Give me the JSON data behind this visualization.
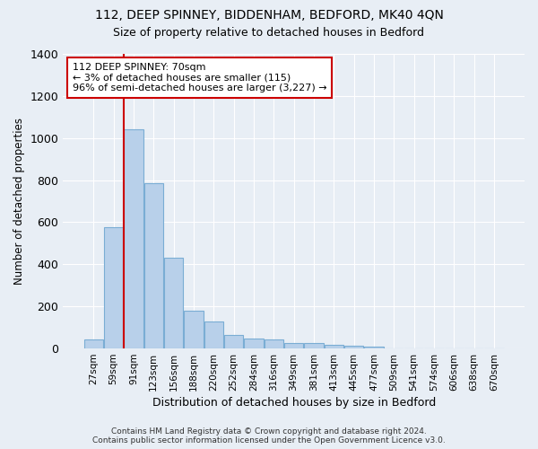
{
  "title1": "112, DEEP SPINNEY, BIDDENHAM, BEDFORD, MK40 4QN",
  "title2": "Size of property relative to detached houses in Bedford",
  "xlabel": "Distribution of detached houses by size in Bedford",
  "ylabel": "Number of detached properties",
  "footnote": "Contains HM Land Registry data © Crown copyright and database right 2024.\nContains public sector information licensed under the Open Government Licence v3.0.",
  "bar_labels": [
    "27sqm",
    "59sqm",
    "91sqm",
    "123sqm",
    "156sqm",
    "188sqm",
    "220sqm",
    "252sqm",
    "284sqm",
    "316sqm",
    "349sqm",
    "381sqm",
    "413sqm",
    "445sqm",
    "477sqm",
    "509sqm",
    "541sqm",
    "574sqm",
    "606sqm",
    "638sqm",
    "670sqm"
  ],
  "bar_values": [
    45,
    578,
    1040,
    785,
    430,
    178,
    128,
    63,
    47,
    43,
    27,
    25,
    18,
    12,
    10,
    0,
    0,
    0,
    0,
    0,
    0
  ],
  "bar_color": "#b8d0ea",
  "bar_edge_color": "#7aadd4",
  "annotation_text": "112 DEEP SPINNEY: 70sqm\n← 3% of detached houses are smaller (115)\n96% of semi-detached houses are larger (3,227) →",
  "redline_x": 1.5,
  "annotation_box_color": "#ffffff",
  "annotation_box_edge": "#cc0000",
  "redline_color": "#cc0000",
  "ylim": [
    0,
    1400
  ],
  "yticks": [
    0,
    200,
    400,
    600,
    800,
    1000,
    1200,
    1400
  ],
  "background_color": "#e8eef5",
  "plot_bg_color": "#e8eef5",
  "grid_color": "#ffffff",
  "title_fontsize": 10,
  "subtitle_fontsize": 9,
  "tick_fontsize": 7.5,
  "ylabel_fontsize": 8.5,
  "xlabel_fontsize": 9
}
